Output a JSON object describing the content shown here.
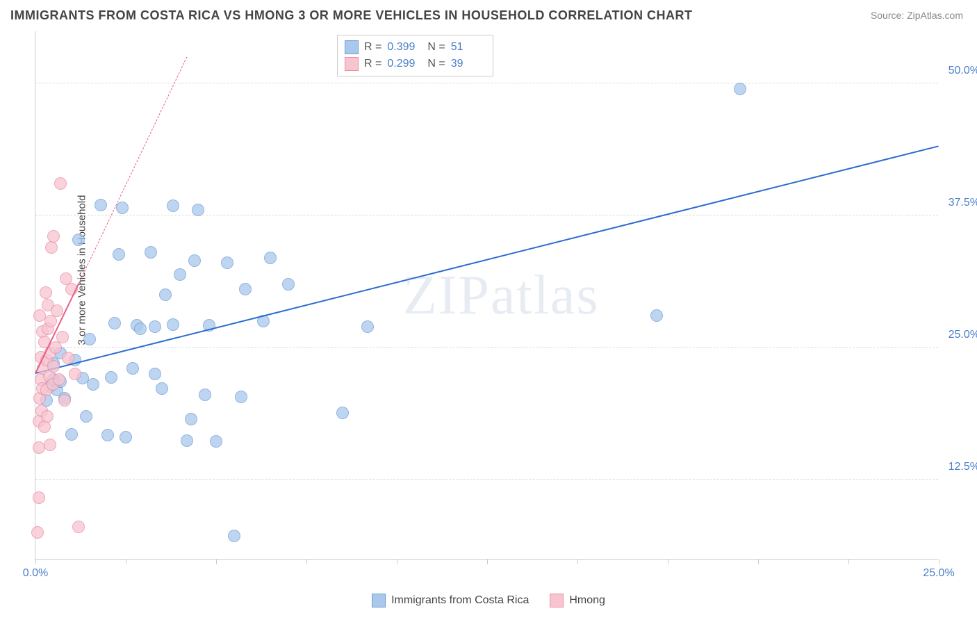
{
  "title": "IMMIGRANTS FROM COSTA RICA VS HMONG 3 OR MORE VEHICLES IN HOUSEHOLD CORRELATION CHART",
  "source": "Source: ZipAtlas.com",
  "watermark_text": "ZIPatlas",
  "chart": {
    "type": "scatter",
    "ylabel": "3 or more Vehicles in Household",
    "xlim": [
      0,
      25
    ],
    "ylim": [
      5,
      55
    ],
    "xticks": [
      0,
      2.5,
      5,
      7.5,
      10,
      12.5,
      15,
      17.5,
      20,
      22.5,
      25
    ],
    "xtick_labels": {
      "0": "0.0%",
      "25": "25.0%"
    },
    "yticks": [
      12.5,
      25,
      37.5,
      50
    ],
    "ytick_labels": {
      "12.5": "12.5%",
      "25": "25.0%",
      "37.5": "37.5%",
      "50": "50.0%"
    },
    "grid_color": "#dddddd",
    "background_color": "#ffffff",
    "axis_color": "#cccccc",
    "marker_radius": 9,
    "series": [
      {
        "name": "Immigrants from Costa Rica",
        "color": "#a8c8ec",
        "border_color": "#6d9bd4",
        "line_color": "#2d6cd0",
        "R": "0.399",
        "N": "51",
        "trend": {
          "x1": 0,
          "y1": 22.5,
          "x2": 25,
          "y2": 44,
          "solid": true,
          "width": 2,
          "dash_ext": null
        },
        "points": [
          [
            0.3,
            20
          ],
          [
            0.4,
            21.3
          ],
          [
            0.5,
            22
          ],
          [
            0.5,
            23.5
          ],
          [
            0.6,
            21
          ],
          [
            0.7,
            21.8
          ],
          [
            0.7,
            24.5
          ],
          [
            0.8,
            20.2
          ],
          [
            1.0,
            16.8
          ],
          [
            1.1,
            23.8
          ],
          [
            1.2,
            35.2
          ],
          [
            1.3,
            22.1
          ],
          [
            1.4,
            18.5
          ],
          [
            1.5,
            25.8
          ],
          [
            1.6,
            21.5
          ],
          [
            1.8,
            38.5
          ],
          [
            2.0,
            16.7
          ],
          [
            2.1,
            22.2
          ],
          [
            2.2,
            27.3
          ],
          [
            2.3,
            33.8
          ],
          [
            2.4,
            38.2
          ],
          [
            2.5,
            16.5
          ],
          [
            2.7,
            23.0
          ],
          [
            2.8,
            27.1
          ],
          [
            2.9,
            26.8
          ],
          [
            3.2,
            34.0
          ],
          [
            3.3,
            22.5
          ],
          [
            3.3,
            27.0
          ],
          [
            3.5,
            21.1
          ],
          [
            3.6,
            30.0
          ],
          [
            3.8,
            27.2
          ],
          [
            3.8,
            38.4
          ],
          [
            4.0,
            31.9
          ],
          [
            4.2,
            16.2
          ],
          [
            4.3,
            18.2
          ],
          [
            4.4,
            33.2
          ],
          [
            4.5,
            38.0
          ],
          [
            4.7,
            20.5
          ],
          [
            4.8,
            27.1
          ],
          [
            5.0,
            16.1
          ],
          [
            5.3,
            33.0
          ],
          [
            5.5,
            7.2
          ],
          [
            5.7,
            20.3
          ],
          [
            5.8,
            30.5
          ],
          [
            6.3,
            27.5
          ],
          [
            6.5,
            33.5
          ],
          [
            7.0,
            31.0
          ],
          [
            8.5,
            18.8
          ],
          [
            9.2,
            27.0
          ],
          [
            17.2,
            28.0
          ],
          [
            19.5,
            49.5
          ]
        ]
      },
      {
        "name": "Hmong",
        "color": "#f8c4d0",
        "border_color": "#e88ca4",
        "line_color": "#ea5d84",
        "R": "0.299",
        "N": "39",
        "trend": {
          "x1": 0,
          "y1": 22.5,
          "x2": 1.2,
          "y2": 31.0,
          "solid": true,
          "width": 2,
          "dash_ext": {
            "x2": 4.2,
            "y2": 52.5
          }
        },
        "points": [
          [
            0.05,
            7.5
          ],
          [
            0.1,
            10.8
          ],
          [
            0.1,
            15.5
          ],
          [
            0.1,
            18.0
          ],
          [
            0.12,
            20.2
          ],
          [
            0.12,
            28.0
          ],
          [
            0.15,
            22.0
          ],
          [
            0.15,
            24.1
          ],
          [
            0.18,
            19.0
          ],
          [
            0.2,
            26.5
          ],
          [
            0.2,
            21.1
          ],
          [
            0.22,
            23.0
          ],
          [
            0.25,
            17.5
          ],
          [
            0.25,
            25.5
          ],
          [
            0.28,
            30.2
          ],
          [
            0.3,
            21.0
          ],
          [
            0.3,
            23.8
          ],
          [
            0.32,
            18.5
          ],
          [
            0.35,
            26.8
          ],
          [
            0.35,
            29.0
          ],
          [
            0.38,
            22.3
          ],
          [
            0.4,
            24.5
          ],
          [
            0.4,
            15.8
          ],
          [
            0.42,
            27.5
          ],
          [
            0.45,
            34.5
          ],
          [
            0.48,
            21.5
          ],
          [
            0.5,
            23.2
          ],
          [
            0.5,
            35.5
          ],
          [
            0.55,
            25.0
          ],
          [
            0.6,
            28.5
          ],
          [
            0.65,
            22.0
          ],
          [
            0.7,
            40.5
          ],
          [
            0.75,
            26.0
          ],
          [
            0.8,
            20.0
          ],
          [
            0.85,
            31.5
          ],
          [
            0.9,
            24.0
          ],
          [
            1.0,
            30.5
          ],
          [
            1.1,
            22.5
          ],
          [
            1.2,
            8.0
          ]
        ]
      }
    ]
  },
  "stat_legend": {
    "r_label": "R =",
    "n_label": "N ="
  },
  "bottom_legend": {
    "items": [
      "Immigrants from Costa Rica",
      "Hmong"
    ]
  }
}
